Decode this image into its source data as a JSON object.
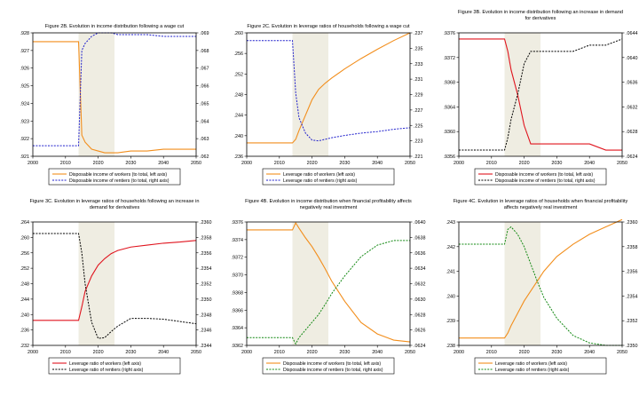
{
  "chart_data": [
    {
      "type": "line",
      "title": "Figure 2B. Evolution in income distribution following a wage cut",
      "x": [
        2000,
        2013,
        2014,
        2015,
        2016,
        2018,
        2020,
        2022,
        2024,
        2026,
        2030,
        2035,
        2040,
        2045,
        2050
      ],
      "xlim": [
        2000,
        2050
      ],
      "xticks": [
        "2000",
        "2010",
        "2020",
        "2030",
        "2040",
        "2050"
      ],
      "shaded_region": [
        2014,
        2025
      ],
      "left_axis": {
        "ylim": [
          0.921,
          0.928
        ],
        "ticks": [
          ".928",
          ".927",
          ".926",
          ".925",
          ".924",
          ".923",
          ".922",
          ".921"
        ]
      },
      "right_axis": {
        "ylim": [
          0.062,
          0.069
        ],
        "ticks": [
          ".069",
          ".068",
          ".067",
          ".066",
          ".065",
          ".064",
          ".063",
          ".062"
        ]
      },
      "series": [
        {
          "name": "Disposable income of workers (to total, left axis)",
          "axis": "left",
          "color": "#f28e1c",
          "dash": "solid",
          "values": [
            0.9275,
            0.9275,
            0.9275,
            0.9222,
            0.9218,
            0.9214,
            0.9213,
            0.9212,
            0.9212,
            0.9212,
            0.9213,
            0.9213,
            0.9214,
            0.9214,
            0.9214
          ]
        },
        {
          "name": "Disposable income of rentiers (to total, right axis)",
          "axis": "right",
          "color": "#1f1fcc",
          "dash": "dotted",
          "values": [
            0.0626,
            0.0626,
            0.0626,
            0.068,
            0.0684,
            0.0688,
            0.069,
            0.069,
            0.069,
            0.0689,
            0.0689,
            0.0689,
            0.0688,
            0.0688,
            0.0688
          ]
        }
      ]
    },
    {
      "type": "line",
      "title": "Figure 2C. Evolution in leverage ratios of households following a wage cut",
      "x": [
        2000,
        2013,
        2014,
        2015,
        2016,
        2018,
        2020,
        2022,
        2024,
        2026,
        2030,
        2035,
        2040,
        2045,
        2050
      ],
      "xlim": [
        2000,
        2050
      ],
      "xticks": [
        "2000",
        "2010",
        "2020",
        "2030",
        "2040",
        "2050"
      ],
      "shaded_region": [
        2014,
        2025
      ],
      "left_axis": {
        "ylim": [
          0.236,
          0.26
        ],
        "ticks": [
          ".260",
          ".256",
          ".252",
          ".248",
          ".244",
          ".240",
          ".236"
        ]
      },
      "right_axis": {
        "ylim": [
          0.221,
          0.237
        ],
        "ticks": [
          ".237",
          ".235",
          ".233",
          ".231",
          ".229",
          ".227",
          ".225",
          ".223",
          ".221"
        ]
      },
      "series": [
        {
          "name": "Leverage ratio of workers (left axis)",
          "axis": "left",
          "color": "#f28e1c",
          "dash": "solid",
          "values": [
            0.2386,
            0.2386,
            0.2386,
            0.2393,
            0.241,
            0.244,
            0.247,
            0.249,
            0.2502,
            0.2512,
            0.253,
            0.255,
            0.2568,
            0.2585,
            0.26
          ]
        },
        {
          "name": "Leverage ratio of rentiers (right axis)",
          "axis": "right",
          "color": "#1f1fcc",
          "dash": "dotted",
          "values": [
            0.236,
            0.236,
            0.236,
            0.2292,
            0.226,
            0.224,
            0.2231,
            0.223,
            0.2232,
            0.2234,
            0.2237,
            0.224,
            0.2242,
            0.2245,
            0.2247
          ]
        }
      ]
    },
    {
      "type": "line",
      "title": "Figure 3B. Evolution in income distribution following an increase in demand for derivatives",
      "title_lines": [
        "Figure 3B. Evolution in income distribution following an increase in demand",
        "for derivatives"
      ],
      "x": [
        2000,
        2013,
        2014,
        2015,
        2016,
        2018,
        2020,
        2022,
        2024,
        2026,
        2030,
        2035,
        2040,
        2045,
        2050
      ],
      "xlim": [
        2000,
        2050
      ],
      "xticks": [
        "2000",
        "2010",
        "2020",
        "2030",
        "2040",
        "2050"
      ],
      "shaded_region": [
        2014,
        2025
      ],
      "left_axis": {
        "ylim": [
          0.9356,
          0.9376
        ],
        "ticks": [
          ".9376",
          ".9372",
          ".9368",
          ".9364",
          ".9360",
          ".9356"
        ]
      },
      "right_axis": {
        "ylim": [
          0.0624,
          0.0644
        ],
        "ticks": [
          ".0644",
          ".0640",
          ".0636",
          ".0632",
          ".0628",
          ".0624"
        ]
      },
      "series": [
        {
          "name": "Disposable income of workers (to total, left axis)",
          "axis": "left",
          "color": "#e0141e",
          "dash": "solid",
          "values": [
            0.9375,
            0.9375,
            0.9375,
            0.9373,
            0.937,
            0.9366,
            0.9361,
            0.9358,
            0.9358,
            0.9358,
            0.9358,
            0.9358,
            0.9358,
            0.9357,
            0.9357
          ]
        },
        {
          "name": "Disposable income of rentiers (to total, right axis)",
          "axis": "right",
          "color": "#000000",
          "dash": "dotted",
          "values": [
            0.0625,
            0.0625,
            0.0625,
            0.0627,
            0.063,
            0.0634,
            0.0639,
            0.0641,
            0.0641,
            0.0641,
            0.0641,
            0.0641,
            0.0642,
            0.0642,
            0.0643
          ]
        }
      ]
    },
    {
      "type": "line",
      "title": "Figure 3C. Evolution in leverage ratios of households following an increase in demand for derivatives",
      "title_lines": [
        "Figure 3C. Evolution in leverage ratios of households following an increase in",
        "demand for derivatives"
      ],
      "x": [
        2000,
        2013,
        2014,
        2015,
        2016,
        2018,
        2020,
        2022,
        2024,
        2026,
        2030,
        2035,
        2040,
        2045,
        2050
      ],
      "xlim": [
        2000,
        2050
      ],
      "xticks": [
        "2000",
        "2010",
        "2020",
        "2030",
        "2040",
        "2050"
      ],
      "shaded_region": [
        2014,
        2025
      ],
      "left_axis": {
        "ylim": [
          0.232,
          0.264
        ],
        "ticks": [
          ".264",
          ".260",
          ".256",
          ".252",
          ".248",
          ".244",
          ".240",
          ".236",
          ".232"
        ]
      },
      "right_axis": {
        "ylim": [
          0.2344,
          0.236
        ],
        "ticks": [
          ".2360",
          ".2358",
          ".2356",
          ".2354",
          ".2352",
          ".2350",
          ".2348",
          ".2346",
          ".2344"
        ]
      },
      "series": [
        {
          "name": "Leverage ratio of workers (left axis)",
          "axis": "left",
          "color": "#e0141e",
          "dash": "solid",
          "values": [
            0.2385,
            0.2385,
            0.2385,
            0.242,
            0.246,
            0.25,
            0.2528,
            0.2545,
            0.2558,
            0.2566,
            0.2575,
            0.258,
            0.2585,
            0.2588,
            0.2592
          ]
        },
        {
          "name": "Leverage ratio of rentiers (right axis)",
          "axis": "right",
          "color": "#000000",
          "dash": "dotted",
          "values": [
            0.23585,
            0.23585,
            0.23585,
            0.2356,
            0.2352,
            0.2347,
            0.23449,
            0.2345,
            0.23458,
            0.23465,
            0.23475,
            0.23475,
            0.23474,
            0.23471,
            0.23468
          ]
        }
      ]
    },
    {
      "type": "line",
      "title": "Figure 4B. Evolution in income distribution when financial profitability affects negatively real investment",
      "title_lines": [
        "Figure 4B. Evolution in income distribution when financial profitability affects",
        "negatively real investment"
      ],
      "x": [
        2000,
        2013,
        2014,
        2015,
        2016,
        2018,
        2020,
        2022,
        2024,
        2026,
        2030,
        2035,
        2040,
        2045,
        2050
      ],
      "xlim": [
        2000,
        2050
      ],
      "xticks": [
        "2000",
        "2010",
        "2020",
        "2030",
        "2040",
        "2050"
      ],
      "shaded_region": [
        2014,
        2025
      ],
      "left_axis": {
        "ylim": [
          0.9362,
          0.9376
        ],
        "ticks": [
          ".9376",
          ".9374",
          ".9372",
          ".9370",
          ".9368",
          ".9366",
          ".9364",
          ".9362"
        ]
      },
      "right_axis": {
        "ylim": [
          0.0624,
          0.064
        ],
        "ticks": [
          ".0640",
          ".0638",
          ".0636",
          ".0634",
          ".0632",
          ".0630",
          ".0628",
          ".0626",
          ".0624"
        ]
      },
      "series": [
        {
          "name": "Disposable income of workers (to total, left axis)",
          "axis": "left",
          "color": "#f28e1c",
          "dash": "solid",
          "values": [
            0.93751,
            0.93751,
            0.93751,
            0.93759,
            0.93753,
            0.93742,
            0.93732,
            0.9372,
            0.93707,
            0.93693,
            0.9367,
            0.93646,
            0.93633,
            0.93626,
            0.93624
          ]
        },
        {
          "name": "Disposable income of rentiers (to total, right axis)",
          "axis": "right",
          "color": "#118811",
          "dash": "dotted",
          "values": [
            0.0625,
            0.0625,
            0.0625,
            0.06242,
            0.0625,
            0.0626,
            0.0627,
            0.0628,
            0.06293,
            0.06307,
            0.0633,
            0.06355,
            0.0637,
            0.06376,
            0.06376
          ]
        }
      ]
    },
    {
      "type": "line",
      "title": "Figure 4C. Evolution in leverage ratios of households when financial profitability affects negatively real investment",
      "title_lines": [
        "Figure 4C. Evolution in leverage ratios of households when financial profitability",
        "affects negatively real investment"
      ],
      "x": [
        2000,
        2013,
        2014,
        2015,
        2016,
        2018,
        2020,
        2022,
        2024,
        2026,
        2030,
        2035,
        2040,
        2045,
        2050
      ],
      "xlim": [
        2000,
        2050
      ],
      "xticks": [
        "2000",
        "2010",
        "2020",
        "2030",
        "2040",
        "2050"
      ],
      "shaded_region": [
        2014,
        2025
      ],
      "left_axis": {
        "ylim": [
          0.238,
          0.243
        ],
        "ticks": [
          ".243",
          ".242",
          ".241",
          ".240",
          ".239",
          ".238"
        ]
      },
      "right_axis": {
        "ylim": [
          0.235,
          0.236
        ],
        "ticks": [
          ".2360",
          ".2358",
          ".2356",
          ".2354",
          ".2352",
          ".2350"
        ]
      },
      "series": [
        {
          "name": "Leverage ratio of workers (left axis)",
          "axis": "left",
          "color": "#f28e1c",
          "dash": "solid",
          "values": [
            0.2383,
            0.2383,
            0.2383,
            0.2385,
            0.2388,
            0.2393,
            0.2398,
            0.2402,
            0.2406,
            0.241,
            0.2416,
            0.2421,
            0.2425,
            0.2428,
            0.2431
          ]
        },
        {
          "name": "Leverage ratio of rentiers (right axis)",
          "axis": "right",
          "color": "#118811",
          "dash": "dotted",
          "values": [
            0.23582,
            0.23582,
            0.23582,
            0.23594,
            0.23596,
            0.2359,
            0.2358,
            0.23566,
            0.23552,
            0.23539,
            0.23522,
            0.23508,
            0.23502,
            0.235,
            0.235
          ]
        }
      ]
    }
  ]
}
